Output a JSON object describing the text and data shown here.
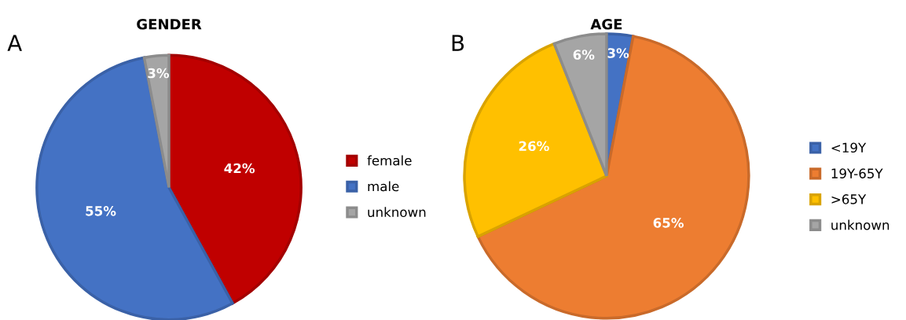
{
  "chart_data": [
    {
      "type": "pie",
      "title": "GENDER",
      "categories": [
        "female",
        "male",
        "unknown"
      ],
      "values": [
        42,
        55,
        3
      ],
      "colors": [
        "#c00000",
        "#4472c4",
        "#a5a5a5"
      ],
      "value_labels": [
        "42%",
        "55%",
        "3%"
      ],
      "legend": "right",
      "annotations": [
        "A"
      ]
    },
    {
      "type": "pie",
      "title": "AGE",
      "categories": [
        "<19Y",
        "19Y-65Y",
        ">65Y",
        "unknown"
      ],
      "values": [
        3,
        65,
        26,
        6
      ],
      "colors": [
        "#4472c4",
        "#ed7d31",
        "#ffc000",
        "#a5a5a5"
      ],
      "value_labels": [
        "3%",
        "65%",
        "26%",
        "6%"
      ],
      "legend": "right",
      "annotations": [
        "B"
      ]
    }
  ]
}
